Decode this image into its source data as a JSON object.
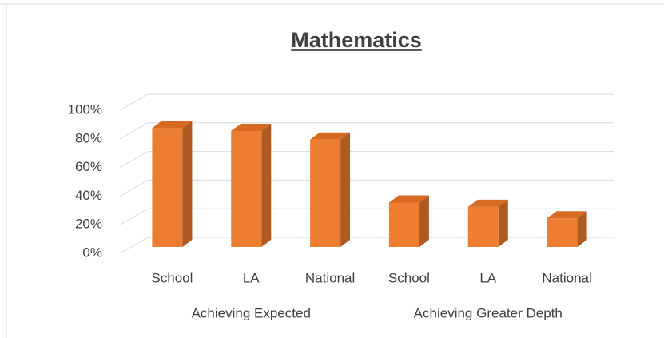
{
  "chart_data": {
    "type": "bar",
    "title": "Mathematics",
    "categories": [
      "School",
      "LA",
      "National",
      "School",
      "LA",
      "National"
    ],
    "groups": [
      "Achieving Expected",
      "Achieving Greater Depth"
    ],
    "values": [
      83,
      81,
      75,
      31,
      28,
      20
    ],
    "color": "#ed7d31",
    "ylim": [
      0,
      100
    ],
    "yticks": [
      {
        "value": 0,
        "label": "0%"
      },
      {
        "value": 20,
        "label": "20%"
      },
      {
        "value": 40,
        "label": "40%"
      },
      {
        "value": 60,
        "label": "60%"
      },
      {
        "value": 80,
        "label": "80%"
      },
      {
        "value": 100,
        "label": "100%"
      }
    ],
    "grid": true
  }
}
